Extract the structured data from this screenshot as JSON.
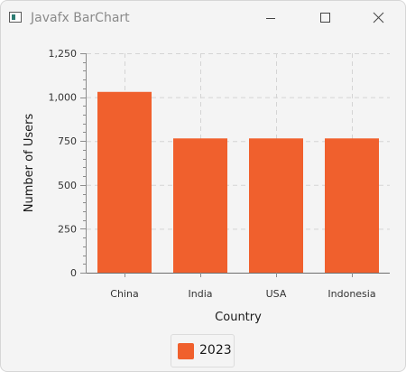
{
  "window": {
    "title": "Javafx BarChart"
  },
  "titlebar_buttons": {
    "minimize_icon": "minimize-icon",
    "maximize_icon": "maximize-icon",
    "close_icon": "close-icon"
  },
  "colors": {
    "bar": "#f0602d",
    "gridline": "#d4d4d4",
    "axis": "#8c8c8c",
    "background": "#f4f4f4"
  },
  "chart_data": {
    "type": "bar",
    "categories": [
      "China",
      "India",
      "USA",
      "Indonesia"
    ],
    "series": [
      {
        "name": "2023",
        "values": [
          1030,
          765,
          765,
          765
        ]
      }
    ],
    "xlabel": "Country",
    "ylabel": "Number of Users",
    "ylim": [
      0,
      1250
    ],
    "yticks": [
      0,
      250,
      500,
      750,
      1000,
      1250
    ],
    "ytick_labels": [
      "0",
      "250",
      "500",
      "750",
      "1,000",
      "1,250"
    ],
    "minor_ticks_per_major": 5,
    "grid": true,
    "legend_position": "bottom-center"
  }
}
